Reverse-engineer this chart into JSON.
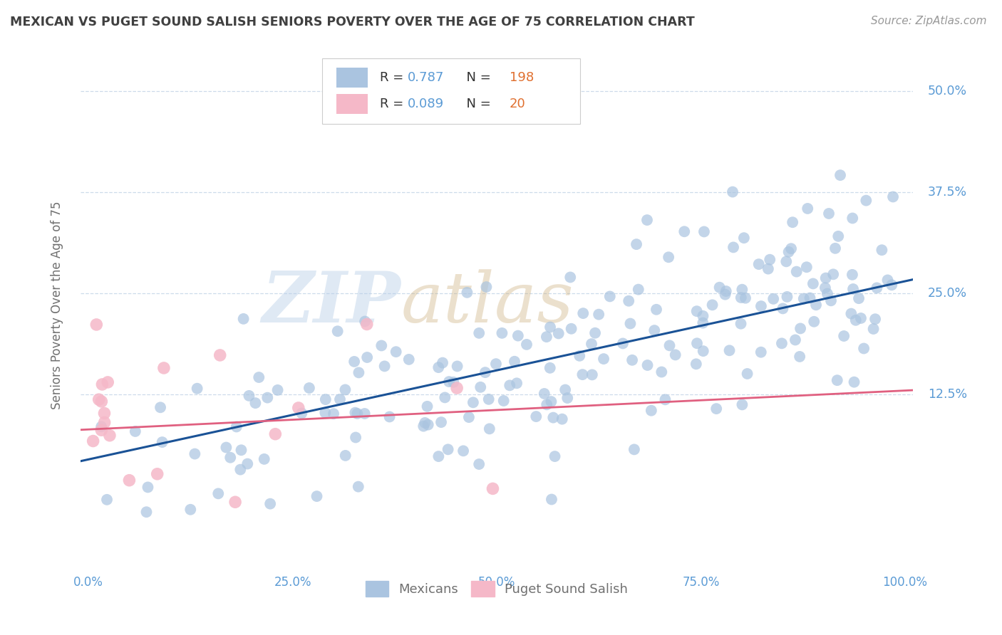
{
  "title": "MEXICAN VS PUGET SOUND SALISH SENIORS POVERTY OVER THE AGE OF 75 CORRELATION CHART",
  "source": "Source: ZipAtlas.com",
  "ylabel": "Seniors Poverty Over the Age of 75",
  "legend_labels": [
    "Mexicans",
    "Puget Sound Salish"
  ],
  "blue_color": "#aac4e0",
  "blue_line_color": "#1a5296",
  "pink_color": "#f5b8c8",
  "pink_line_color": "#e06080",
  "watermark_zip": "ZIP",
  "watermark_atlas": "atlas",
  "xlim": [
    -0.01,
    1.01
  ],
  "ylim": [
    -0.09,
    0.56
  ],
  "yticks": [
    0.125,
    0.25,
    0.375,
    0.5
  ],
  "ytick_labels": [
    "12.5%",
    "25.0%",
    "37.5%",
    "50.0%"
  ],
  "xticks": [
    0.0,
    0.25,
    0.5,
    0.75,
    1.0
  ],
  "xtick_labels": [
    "0.0%",
    "25.0%",
    "50.0%",
    "75.0%",
    "100.0%"
  ],
  "background_color": "#ffffff",
  "grid_color": "#c8d8e8",
  "title_color": "#404040",
  "axis_label_color": "#707070",
  "tick_color": "#5b9bd5",
  "source_color": "#999999",
  "blue_R": 0.787,
  "pink_R": 0.089,
  "blue_N": 198,
  "pink_N": 20,
  "blue_intercept": 0.045,
  "blue_slope": 0.22,
  "pink_intercept": 0.082,
  "pink_slope": 0.048,
  "random_seed_blue": 7,
  "random_seed_pink": 13
}
